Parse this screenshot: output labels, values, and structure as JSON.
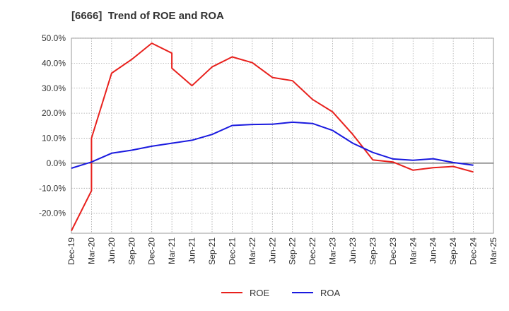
{
  "chart_data": {
    "type": "line",
    "title": "[6666]  Trend of ROE and ROA",
    "xlabel": "",
    "ylabel": "",
    "x": [
      "Dec-19",
      "Mar-20",
      "Jun-20",
      "Sep-20",
      "Dec-20",
      "Mar-21",
      "Jun-21",
      "Sep-21",
      "Dec-21",
      "Mar-22",
      "Jun-22",
      "Sep-22",
      "Dec-22",
      "Mar-23",
      "Jun-23",
      "Sep-23",
      "Dec-23",
      "Mar-24",
      "Jun-24",
      "Sep-24",
      "Dec-24",
      "Mar-25"
    ],
    "ylim": [
      -28,
      50
    ],
    "yticks": [
      50,
      40,
      30,
      20,
      10,
      0,
      -10,
      -20
    ],
    "ytick_labels": [
      "50.0%",
      "40.0%",
      "30.0%",
      "20.0%",
      "10.0%",
      "0.0%",
      "-10.0%",
      "-20.0%"
    ],
    "grid": true,
    "legend_position": "bottom-center",
    "series": [
      {
        "name": "ROE",
        "color": "#e8211d",
        "points": [
          {
            "x": "Dec-19",
            "y": -27.0
          },
          {
            "x": "Mar-20",
            "y": -11.0
          },
          {
            "x": "Mar-20",
            "y": 10.0
          },
          {
            "x": "Jun-20",
            "y": 36.0
          },
          {
            "x": "Sep-20",
            "y": 41.5
          },
          {
            "x": "Dec-20",
            "y": 48.0
          },
          {
            "x": "Mar-21",
            "y": 44.0
          },
          {
            "x": "Mar-21",
            "y": 38.0
          },
          {
            "x": "Jun-21",
            "y": 31.0
          },
          {
            "x": "Sep-21",
            "y": 38.5
          },
          {
            "x": "Dec-21",
            "y": 42.5
          },
          {
            "x": "Mar-22",
            "y": 40.2
          },
          {
            "x": "Jun-22",
            "y": 34.3
          },
          {
            "x": "Sep-22",
            "y": 33.0
          },
          {
            "x": "Dec-22",
            "y": 25.5
          },
          {
            "x": "Mar-23",
            "y": 20.5
          },
          {
            "x": "Jun-23",
            "y": 11.5
          },
          {
            "x": "Sep-23",
            "y": 1.3
          },
          {
            "x": "Dec-23",
            "y": 0.5
          },
          {
            "x": "Mar-24",
            "y": -2.8
          },
          {
            "x": "Jun-24",
            "y": -1.8
          },
          {
            "x": "Sep-24",
            "y": -1.3
          },
          {
            "x": "Dec-24",
            "y": -3.5
          }
        ]
      },
      {
        "name": "ROA",
        "color": "#1a1adf",
        "points": [
          {
            "x": "Dec-19",
            "y": -2.0
          },
          {
            "x": "Mar-20",
            "y": 0.5
          },
          {
            "x": "Jun-20",
            "y": 4.0
          },
          {
            "x": "Sep-20",
            "y": 5.2
          },
          {
            "x": "Dec-20",
            "y": 6.8
          },
          {
            "x": "Mar-21",
            "y": 8.0
          },
          {
            "x": "Jun-21",
            "y": 9.2
          },
          {
            "x": "Sep-21",
            "y": 11.5
          },
          {
            "x": "Dec-21",
            "y": 15.1
          },
          {
            "x": "Mar-22",
            "y": 15.5
          },
          {
            "x": "Jun-22",
            "y": 15.6
          },
          {
            "x": "Sep-22",
            "y": 16.4
          },
          {
            "x": "Dec-22",
            "y": 15.9
          },
          {
            "x": "Mar-23",
            "y": 13.1
          },
          {
            "x": "Jun-23",
            "y": 8.0
          },
          {
            "x": "Sep-23",
            "y": 4.3
          },
          {
            "x": "Dec-23",
            "y": 1.7
          },
          {
            "x": "Mar-24",
            "y": 1.2
          },
          {
            "x": "Jun-24",
            "y": 1.8
          },
          {
            "x": "Sep-24",
            "y": 0.3
          },
          {
            "x": "Dec-24",
            "y": -0.8
          }
        ]
      }
    ]
  }
}
